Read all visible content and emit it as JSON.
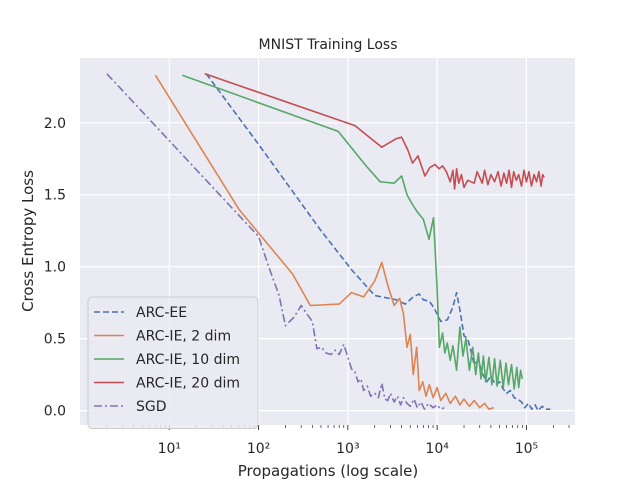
{
  "chart_data": {
    "type": "line",
    "title": "MNIST Training Loss",
    "xlabel": "Propagations (log scale)",
    "ylabel": "Cross Entropy Loss",
    "xscale": "log",
    "xlim": [
      1.0,
      350000
    ],
    "ylim": [
      -0.1,
      2.45
    ],
    "grid": true,
    "legend_position": "lower-left",
    "xticks": [
      {
        "value": 10,
        "label": "10¹"
      },
      {
        "value": 100,
        "label": "10²"
      },
      {
        "value": 1000,
        "label": "10³"
      },
      {
        "value": 10000,
        "label": "10⁴"
      },
      {
        "value": 100000,
        "label": "10⁵"
      }
    ],
    "yticks": [
      {
        "value": 0.0,
        "label": "0.0"
      },
      {
        "value": 0.5,
        "label": "0.5"
      },
      {
        "value": 1.0,
        "label": "1.0"
      },
      {
        "value": 1.5,
        "label": "1.5"
      },
      {
        "value": 2.0,
        "label": "2.0"
      }
    ],
    "series": [
      {
        "name": "ARC-EE",
        "color": "#4c72b0",
        "dash": "dashed",
        "points": [
          [
            26,
            2.34
          ],
          [
            100,
            1.85
          ],
          [
            500,
            1.25
          ],
          [
            1100,
            0.98
          ],
          [
            2000,
            0.8
          ],
          [
            3500,
            0.77
          ],
          [
            4400,
            0.74
          ],
          [
            5400,
            0.79
          ],
          [
            6300,
            0.81
          ],
          [
            7000,
            0.77
          ],
          [
            8200,
            0.76
          ],
          [
            9300,
            0.71
          ],
          [
            11000,
            0.62
          ],
          [
            13000,
            0.63
          ],
          [
            15000,
            0.72
          ],
          [
            16500,
            0.82
          ],
          [
            18000,
            0.7
          ],
          [
            20000,
            0.52
          ],
          [
            22000,
            0.5
          ],
          [
            24000,
            0.41
          ],
          [
            26000,
            0.32
          ],
          [
            29000,
            0.35
          ],
          [
            32000,
            0.26
          ],
          [
            36000,
            0.2
          ],
          [
            40000,
            0.24
          ],
          [
            45000,
            0.18
          ],
          [
            50000,
            0.2
          ],
          [
            55000,
            0.15
          ],
          [
            60000,
            0.12
          ],
          [
            66000,
            0.14
          ],
          [
            73000,
            0.09
          ],
          [
            80000,
            0.08
          ],
          [
            88000,
            0.06
          ],
          [
            96000,
            0.02
          ],
          [
            105000,
            0.05
          ],
          [
            115000,
            0.01
          ],
          [
            125000,
            0.04
          ],
          [
            135000,
            0.0
          ],
          [
            150000,
            0.03
          ],
          [
            165000,
            0.01
          ],
          [
            185000,
            0.01
          ]
        ]
      },
      {
        "name": "ARC-IE, 2 dim",
        "color": "#dd8452",
        "dash": "solid",
        "points": [
          [
            7,
            2.33
          ],
          [
            60,
            1.4
          ],
          [
            240,
            0.95
          ],
          [
            380,
            0.73
          ],
          [
            800,
            0.74
          ],
          [
            1100,
            0.82
          ],
          [
            1500,
            0.79
          ],
          [
            2000,
            0.9
          ],
          [
            2400,
            1.03
          ],
          [
            2800,
            0.87
          ],
          [
            3300,
            0.73
          ],
          [
            3800,
            0.78
          ],
          [
            4200,
            0.67
          ],
          [
            4600,
            0.44
          ],
          [
            5000,
            0.53
          ],
          [
            5400,
            0.25
          ],
          [
            5900,
            0.44
          ],
          [
            6300,
            0.14
          ],
          [
            6900,
            0.2
          ],
          [
            7500,
            0.1
          ],
          [
            8200,
            0.18
          ],
          [
            9000,
            0.09
          ],
          [
            10000,
            0.16
          ],
          [
            11000,
            0.07
          ],
          [
            12500,
            0.12
          ],
          [
            14000,
            0.05
          ],
          [
            16000,
            0.1
          ],
          [
            18000,
            0.04
          ],
          [
            20000,
            0.08
          ],
          [
            23000,
            0.03
          ],
          [
            26000,
            0.07
          ],
          [
            30000,
            0.02
          ],
          [
            34000,
            0.05
          ],
          [
            38000,
            0.01
          ],
          [
            43000,
            0.02
          ]
        ]
      },
      {
        "name": "ARC-IE, 10 dim",
        "color": "#55a868",
        "dash": "solid",
        "points": [
          [
            14,
            2.33
          ],
          [
            780,
            1.94
          ],
          [
            1600,
            1.7
          ],
          [
            2300,
            1.59
          ],
          [
            3300,
            1.58
          ],
          [
            4000,
            1.63
          ],
          [
            4600,
            1.5
          ],
          [
            5200,
            1.44
          ],
          [
            6000,
            1.38
          ],
          [
            7000,
            1.33
          ],
          [
            8100,
            1.19
          ],
          [
            9100,
            1.34
          ],
          [
            10000,
            0.85
          ],
          [
            10600,
            0.44
          ],
          [
            11500,
            0.54
          ],
          [
            12200,
            0.4
          ],
          [
            13000,
            0.47
          ],
          [
            14000,
            0.35
          ],
          [
            15000,
            0.45
          ],
          [
            16500,
            0.28
          ],
          [
            18000,
            0.58
          ],
          [
            19500,
            0.38
          ],
          [
            21000,
            0.5
          ],
          [
            23000,
            0.28
          ],
          [
            25000,
            0.44
          ],
          [
            27000,
            0.25
          ],
          [
            29000,
            0.4
          ],
          [
            31000,
            0.22
          ],
          [
            33000,
            0.38
          ],
          [
            35000,
            0.2
          ],
          [
            38000,
            0.37
          ],
          [
            41000,
            0.18
          ],
          [
            44000,
            0.36
          ],
          [
            47000,
            0.17
          ],
          [
            51000,
            0.35
          ],
          [
            55000,
            0.16
          ],
          [
            59000,
            0.33
          ],
          [
            63000,
            0.18
          ],
          [
            68000,
            0.32
          ],
          [
            73000,
            0.15
          ],
          [
            78000,
            0.3
          ],
          [
            82000,
            0.16
          ],
          [
            86000,
            0.28
          ],
          [
            90000,
            0.22
          ]
        ]
      },
      {
        "name": "ARC-IE, 20 dim",
        "color": "#c44e52",
        "dash": "solid",
        "points": [
          [
            25,
            2.34
          ],
          [
            1200,
            1.98
          ],
          [
            2400,
            1.83
          ],
          [
            3500,
            1.89
          ],
          [
            4000,
            1.9
          ],
          [
            4700,
            1.81
          ],
          [
            5300,
            1.72
          ],
          [
            6100,
            1.77
          ],
          [
            7300,
            1.63
          ],
          [
            8300,
            1.69
          ],
          [
            9500,
            1.71
          ],
          [
            10500,
            1.68
          ],
          [
            11500,
            1.7
          ],
          [
            12700,
            1.66
          ],
          [
            14000,
            1.59
          ],
          [
            15000,
            1.67
          ],
          [
            15700,
            1.54
          ],
          [
            16500,
            1.68
          ],
          [
            17500,
            1.58
          ],
          [
            18700,
            1.64
          ],
          [
            20000,
            1.55
          ],
          [
            22000,
            1.6
          ],
          [
            24000,
            1.59
          ],
          [
            26000,
            1.58
          ],
          [
            28000,
            1.66
          ],
          [
            30000,
            1.62
          ],
          [
            32000,
            1.58
          ],
          [
            34000,
            1.67
          ],
          [
            37000,
            1.57
          ],
          [
            40000,
            1.64
          ],
          [
            44000,
            1.59
          ],
          [
            48000,
            1.66
          ],
          [
            52000,
            1.56
          ],
          [
            56000,
            1.65
          ],
          [
            60000,
            1.58
          ],
          [
            64000,
            1.67
          ],
          [
            68000,
            1.55
          ],
          [
            72000,
            1.66
          ],
          [
            77000,
            1.6
          ],
          [
            82000,
            1.64
          ],
          [
            88000,
            1.56
          ],
          [
            94000,
            1.67
          ],
          [
            100000,
            1.59
          ],
          [
            107000,
            1.66
          ],
          [
            114000,
            1.56
          ],
          [
            122000,
            1.64
          ],
          [
            130000,
            1.59
          ],
          [
            138000,
            1.66
          ],
          [
            146000,
            1.56
          ],
          [
            152000,
            1.64
          ],
          [
            158000,
            1.62
          ]
        ]
      },
      {
        "name": "SGD",
        "color": "#8172b3",
        "dash": "dashdot",
        "points": [
          [
            2,
            2.34
          ],
          [
            100,
            1.21
          ],
          [
            130,
            1.0
          ],
          [
            170,
            0.8
          ],
          [
            200,
            0.59
          ],
          [
            250,
            0.65
          ],
          [
            300,
            0.73
          ],
          [
            350,
            0.67
          ],
          [
            400,
            0.62
          ],
          [
            450,
            0.43
          ],
          [
            510,
            0.44
          ],
          [
            570,
            0.4
          ],
          [
            650,
            0.39
          ],
          [
            720,
            0.42
          ],
          [
            800,
            0.39
          ],
          [
            900,
            0.46
          ],
          [
            1000,
            0.37
          ],
          [
            1100,
            0.29
          ],
          [
            1200,
            0.27
          ],
          [
            1300,
            0.2
          ],
          [
            1400,
            0.22
          ],
          [
            1500,
            0.14
          ],
          [
            1650,
            0.17
          ],
          [
            1800,
            0.1
          ],
          [
            2000,
            0.12
          ],
          [
            2200,
            0.09
          ],
          [
            2400,
            0.19
          ],
          [
            2600,
            0.08
          ],
          [
            2800,
            0.07
          ],
          [
            3000,
            0.12
          ],
          [
            3300,
            0.06
          ],
          [
            3600,
            0.1
          ],
          [
            3900,
            0.04
          ],
          [
            4200,
            0.09
          ],
          [
            4600,
            0.05
          ],
          [
            5000,
            0.03
          ],
          [
            5500,
            0.08
          ],
          [
            6000,
            0.02
          ],
          [
            6600,
            0.06
          ],
          [
            7200,
            0.01
          ],
          [
            8000,
            0.05
          ],
          [
            9000,
            0.02
          ],
          [
            10000,
            0.04
          ],
          [
            11000,
            0.01
          ],
          [
            12000,
            0.02
          ]
        ]
      }
    ]
  },
  "colors": {
    "plot_background": "#eaeaf2",
    "grid": "#ffffff",
    "text": "#262626",
    "legend_background": "#eaeaf2",
    "legend_border": "#cccccc"
  }
}
